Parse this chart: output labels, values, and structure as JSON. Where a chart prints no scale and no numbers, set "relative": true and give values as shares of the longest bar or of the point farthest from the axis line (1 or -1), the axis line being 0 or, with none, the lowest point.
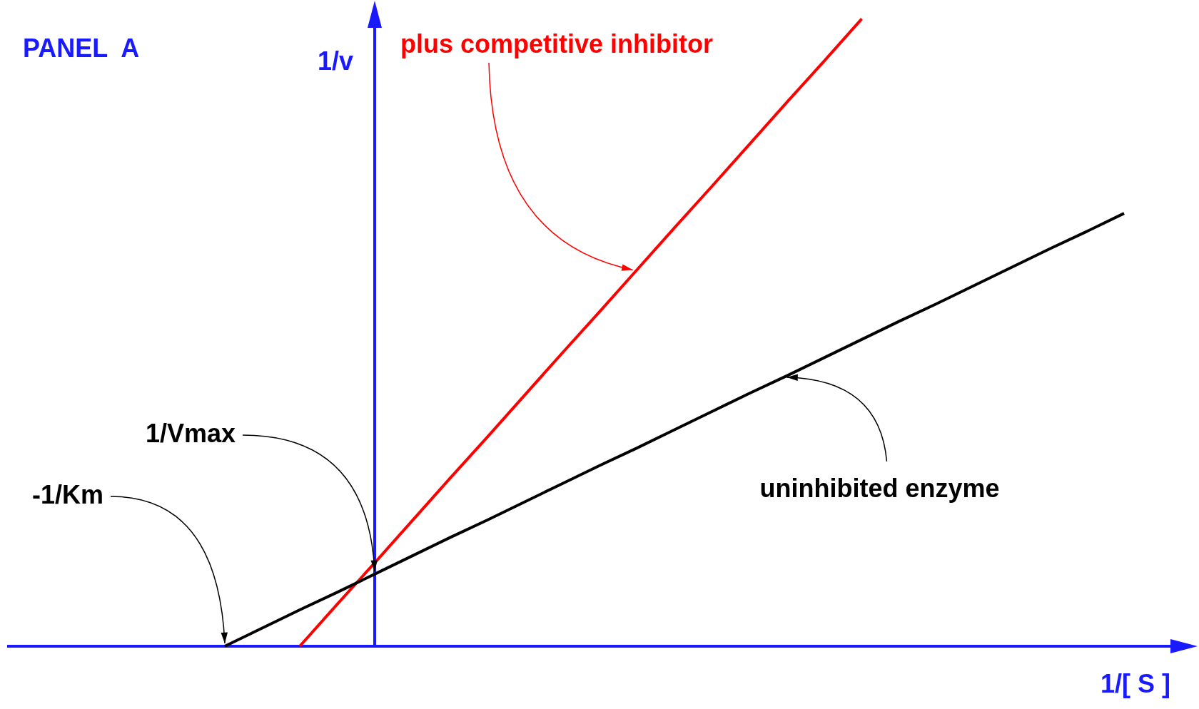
{
  "chart_data": {
    "type": "line",
    "title": "PANEL  A",
    "xlabel": "1/[ S ]",
    "ylabel": "1/v",
    "relative": true,
    "marker": "none",
    "line_style": "solid",
    "categories": [
      null,
      null,
      null,
      null,
      null,
      null,
      null,
      null,
      null,
      null,
      null,
      null,
      null,
      null,
      null,
      null,
      null,
      null,
      null,
      null,
      null,
      null,
      null,
      null,
      null,
      null,
      null,
      null,
      null,
      null,
      null,
      null,
      null
    ],
    "series": [
      {
        "name": "uninhibited enzyme",
        "color": "#000000",
        "values": [
          null,
          null,
          null,
          null,
          null,
          null,
          0,
          0.029,
          0.058,
          0.086,
          0.115,
          0.144,
          0.173,
          0.201,
          0.23,
          0.259,
          0.288,
          0.316,
          0.345,
          0.374,
          0.403,
          0.431,
          0.46,
          0.489,
          0.518,
          0.546,
          0.575,
          0.604,
          0.633,
          0.661,
          0.69,
          null,
          null
        ]
      },
      {
        "name": "plus competitive inhibitor",
        "color": "#ff0000",
        "values": [
          null,
          null,
          null,
          null,
          null,
          null,
          null,
          null,
          0,
          0.067,
          0.133,
          0.2,
          0.267,
          0.333,
          0.4,
          0.467,
          0.533,
          0.6,
          0.667,
          0.733,
          0.8,
          0.867,
          0.933,
          1,
          null,
          null,
          null,
          null,
          null,
          null,
          null,
          null,
          null
        ]
      }
    ],
    "annotations": [
      "1/Vmax",
      "-1/Km"
    ]
  }
}
